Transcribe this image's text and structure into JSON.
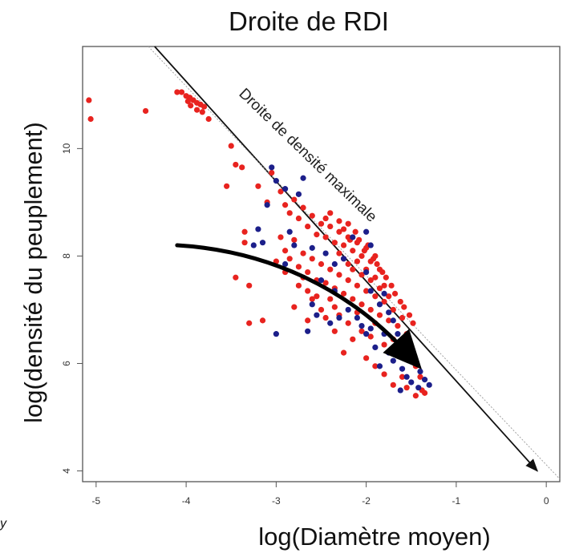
{
  "chart_data": {
    "type": "scatter",
    "title": "Droite de RDI",
    "xlabel": "log(Diamètre moyen)",
    "ylabel": "log(densité du peuplement)",
    "xlim": [
      -5.15,
      0.15
    ],
    "ylim": [
      3.8,
      11.9
    ],
    "x_ticks": [
      "-5",
      "-4",
      "-3",
      "-2",
      "-1",
      "0"
    ],
    "x_tick_values": [
      -5,
      -4,
      -3,
      -2,
      -1,
      0
    ],
    "y_ticks": [
      "4",
      "6",
      "8",
      "10"
    ],
    "y_tick_values": [
      4,
      6,
      8,
      10
    ],
    "grid": false,
    "annotation": "Droite de densité maximale",
    "stray_text": "y",
    "series": [
      {
        "color": "#e8231f",
        "points": [
          [
            -5.08,
            10.9
          ],
          [
            -5.06,
            10.55
          ],
          [
            -4.45,
            10.7
          ],
          [
            -4.1,
            11.05
          ],
          [
            -4.05,
            11.05
          ],
          [
            -4.0,
            10.98
          ],
          [
            -3.96,
            10.95
          ],
          [
            -3.92,
            10.9
          ],
          [
            -3.88,
            10.85
          ],
          [
            -3.84,
            10.82
          ],
          [
            -3.8,
            10.78
          ],
          [
            -3.95,
            10.8
          ],
          [
            -3.88,
            10.72
          ],
          [
            -3.82,
            10.68
          ],
          [
            -3.98,
            10.88
          ],
          [
            -3.75,
            10.55
          ],
          [
            -3.5,
            10.05
          ],
          [
            -3.45,
            9.7
          ],
          [
            -3.38,
            9.65
          ],
          [
            -3.55,
            9.3
          ],
          [
            -3.05,
            9.55
          ],
          [
            -3.2,
            9.3
          ],
          [
            -3.1,
            9.0
          ],
          [
            -3.35,
            8.45
          ],
          [
            -3.35,
            8.25
          ],
          [
            -3.45,
            7.6
          ],
          [
            -3.3,
            7.45
          ],
          [
            -3.3,
            6.75
          ],
          [
            -3.15,
            6.8
          ],
          [
            -2.95,
            9.2
          ],
          [
            -2.9,
            8.95
          ],
          [
            -2.85,
            8.8
          ],
          [
            -2.8,
            9.05
          ],
          [
            -2.75,
            8.7
          ],
          [
            -2.7,
            8.9
          ],
          [
            -2.65,
            8.55
          ],
          [
            -2.6,
            8.75
          ],
          [
            -2.55,
            8.4
          ],
          [
            -2.5,
            8.6
          ],
          [
            -2.45,
            8.35
          ],
          [
            -2.4,
            8.55
          ],
          [
            -2.35,
            8.25
          ],
          [
            -2.3,
            8.45
          ],
          [
            -2.25,
            8.2
          ],
          [
            -2.2,
            8.35
          ],
          [
            -2.15,
            8.1
          ],
          [
            -2.1,
            8.25
          ],
          [
            -2.05,
            8.0
          ],
          [
            -2.0,
            8.15
          ],
          [
            -1.95,
            7.9
          ],
          [
            -1.9,
            8.0
          ],
          [
            -1.85,
            7.75
          ],
          [
            -2.95,
            8.35
          ],
          [
            -2.9,
            8.1
          ],
          [
            -2.85,
            7.95
          ],
          [
            -2.8,
            8.3
          ],
          [
            -2.75,
            7.8
          ],
          [
            -2.7,
            8.05
          ],
          [
            -2.65,
            7.7
          ],
          [
            -2.6,
            7.95
          ],
          [
            -2.55,
            7.55
          ],
          [
            -2.5,
            7.85
          ],
          [
            -2.45,
            7.5
          ],
          [
            -2.4,
            7.75
          ],
          [
            -2.35,
            7.4
          ],
          [
            -2.3,
            7.65
          ],
          [
            -2.25,
            7.3
          ],
          [
            -2.2,
            7.55
          ],
          [
            -2.15,
            7.2
          ],
          [
            -2.1,
            7.45
          ],
          [
            -2.05,
            7.1
          ],
          [
            -2.0,
            7.35
          ],
          [
            -1.95,
            7.0
          ],
          [
            -1.9,
            7.25
          ],
          [
            -1.85,
            6.9
          ],
          [
            -1.8,
            7.15
          ],
          [
            -1.75,
            6.8
          ],
          [
            -1.7,
            7.0
          ],
          [
            -1.65,
            6.7
          ],
          [
            -1.6,
            6.85
          ],
          [
            -1.55,
            6.55
          ],
          [
            -2.45,
            8.7
          ],
          [
            -2.4,
            8.8
          ],
          [
            -2.3,
            8.65
          ],
          [
            -2.25,
            8.5
          ],
          [
            -2.2,
            8.6
          ],
          [
            -2.18,
            8.3
          ],
          [
            -2.12,
            8.45
          ],
          [
            -2.08,
            8.3
          ],
          [
            -2.02,
            8.1
          ],
          [
            -1.98,
            8.2
          ],
          [
            -1.92,
            7.95
          ],
          [
            -1.88,
            7.85
          ],
          [
            -1.82,
            7.7
          ],
          [
            -1.78,
            7.6
          ],
          [
            -1.72,
            7.45
          ],
          [
            -1.68,
            7.3
          ],
          [
            -1.62,
            7.15
          ],
          [
            -1.58,
            7.05
          ],
          [
            -1.52,
            6.9
          ],
          [
            -1.48,
            6.75
          ],
          [
            -2.3,
            8.05
          ],
          [
            -2.25,
            7.95
          ],
          [
            -2.2,
            7.85
          ],
          [
            -2.15,
            7.75
          ],
          [
            -2.1,
            7.9
          ],
          [
            -2.05,
            7.65
          ],
          [
            -2.0,
            7.75
          ],
          [
            -1.95,
            7.55
          ],
          [
            -1.9,
            7.6
          ],
          [
            -1.85,
            7.4
          ],
          [
            -1.8,
            7.45
          ],
          [
            -1.75,
            7.25
          ],
          [
            -2.6,
            7.2
          ],
          [
            -2.5,
            7.0
          ],
          [
            -2.45,
            6.85
          ],
          [
            -2.35,
            7.05
          ],
          [
            -2.3,
            6.9
          ],
          [
            -2.2,
            6.75
          ],
          [
            -2.1,
            6.95
          ],
          [
            -2.05,
            6.6
          ],
          [
            -1.95,
            6.5
          ],
          [
            -1.9,
            6.75
          ],
          [
            -1.8,
            6.35
          ],
          [
            -1.7,
            6.45
          ],
          [
            -1.65,
            6.2
          ],
          [
            -1.55,
            6.25
          ],
          [
            -1.5,
            6.05
          ],
          [
            -1.45,
            5.95
          ],
          [
            -1.4,
            5.75
          ],
          [
            -1.38,
            5.5
          ],
          [
            -1.45,
            5.4
          ],
          [
            -1.35,
            5.45
          ],
          [
            -2.25,
            6.2
          ],
          [
            -2.15,
            6.45
          ],
          [
            -2.0,
            6.1
          ],
          [
            -1.9,
            5.95
          ],
          [
            -1.8,
            5.8
          ],
          [
            -1.7,
            5.6
          ],
          [
            -1.6,
            5.75
          ],
          [
            -1.55,
            5.55
          ],
          [
            -2.7,
            7.6
          ],
          [
            -2.65,
            7.35
          ],
          [
            -2.55,
            7.25
          ],
          [
            -2.4,
            7.2
          ],
          [
            -2.35,
            6.6
          ],
          [
            -2.65,
            6.8
          ],
          [
            -2.8,
            7.05
          ],
          [
            -2.75,
            7.45
          ],
          [
            -2.9,
            7.7
          ],
          [
            -3.0,
            7.9
          ]
        ]
      },
      {
        "color": "#1c1f8a",
        "points": [
          [
            -3.05,
            9.65
          ],
          [
            -3.0,
            9.4
          ],
          [
            -2.9,
            9.25
          ],
          [
            -2.75,
            9.15
          ],
          [
            -2.7,
            9.45
          ],
          [
            -3.1,
            8.95
          ],
          [
            -3.2,
            8.5
          ],
          [
            -3.25,
            8.2
          ],
          [
            -3.15,
            8.25
          ],
          [
            -2.85,
            8.45
          ],
          [
            -2.8,
            8.2
          ],
          [
            -2.6,
            8.15
          ],
          [
            -2.45,
            8.05
          ],
          [
            -2.35,
            7.85
          ],
          [
            -2.25,
            7.95
          ],
          [
            -2.15,
            8.35
          ],
          [
            -2.0,
            8.45
          ],
          [
            -1.95,
            8.2
          ],
          [
            -2.0,
            7.7
          ],
          [
            -1.95,
            7.35
          ],
          [
            -1.85,
            7.1
          ],
          [
            -1.8,
            7.3
          ],
          [
            -1.75,
            6.95
          ],
          [
            -1.7,
            6.8
          ],
          [
            -1.65,
            6.55
          ],
          [
            -1.6,
            6.4
          ],
          [
            -1.55,
            6.25
          ],
          [
            -1.5,
            6.1
          ],
          [
            -1.45,
            6.0
          ],
          [
            -1.4,
            5.85
          ],
          [
            -1.35,
            5.7
          ],
          [
            -1.3,
            5.6
          ],
          [
            -1.42,
            5.55
          ],
          [
            -2.6,
            7.1
          ],
          [
            -2.55,
            6.9
          ],
          [
            -2.4,
            6.75
          ],
          [
            -2.3,
            6.85
          ],
          [
            -2.2,
            7.0
          ],
          [
            -2.1,
            6.85
          ],
          [
            -2.05,
            6.7
          ],
          [
            -2.0,
            6.55
          ],
          [
            -1.95,
            6.65
          ],
          [
            -1.9,
            6.3
          ],
          [
            -1.8,
            6.55
          ],
          [
            -1.75,
            6.2
          ],
          [
            -1.7,
            6.05
          ],
          [
            -1.6,
            5.9
          ],
          [
            -1.55,
            5.75
          ],
          [
            -2.65,
            6.6
          ],
          [
            -3.0,
            6.55
          ],
          [
            -2.9,
            7.85
          ],
          [
            -2.5,
            7.55
          ],
          [
            -2.35,
            7.35
          ],
          [
            -1.85,
            5.95
          ],
          [
            -1.5,
            5.65
          ],
          [
            -1.62,
            5.5
          ]
        ]
      }
    ],
    "lines": [
      {
        "style": "solid arrow",
        "color": "#111111",
        "from": [
          -4.35,
          11.9
        ],
        "to": [
          -0.1,
          4.0
        ]
      },
      {
        "style": "thin dotted",
        "color": "#9a9a9a",
        "from": [
          -4.42,
          11.9
        ],
        "to": [
          0.15,
          3.85
        ]
      }
    ],
    "trend_arrow": {
      "color": "#000000",
      "path": [
        [
          -4.1,
          8.2
        ],
        [
          -3.1,
          8.1
        ],
        [
          -2.2,
          7.4
        ],
        [
          -1.55,
          6.2
        ]
      ]
    }
  }
}
